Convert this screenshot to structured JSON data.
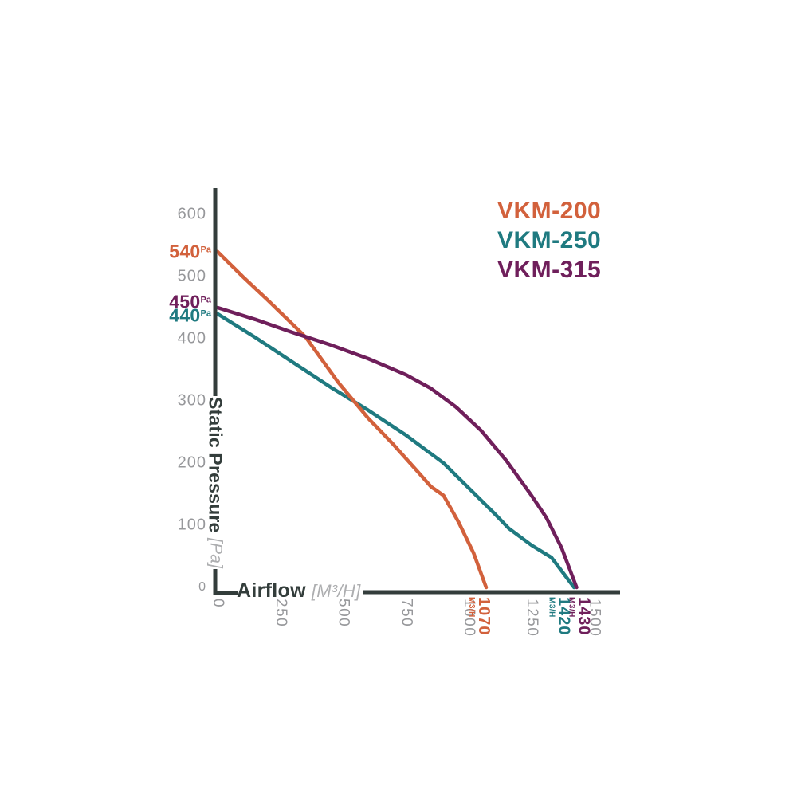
{
  "page": {
    "background": "#ffffff"
  },
  "chart_data": {
    "type": "line",
    "title": "",
    "xlabel": "Airflow",
    "xlabel_unit": "[M³/H]",
    "ylabel": "Static Pressure",
    "ylabel_unit": "[Pa]",
    "x_ticks": [
      0,
      250,
      500,
      750,
      1000,
      1250,
      1500
    ],
    "y_ticks": [
      600,
      500,
      400,
      300,
      200,
      100,
      0
    ],
    "xlim": [
      0,
      1550
    ],
    "ylim": [
      0,
      640
    ],
    "grid": false,
    "legend_position": "top-right",
    "axis_color": "#333d3b",
    "tick_color": "#97989b",
    "unit_color": "#adaeb0",
    "pressure_unit": "Pa",
    "flow_unit": "M3/H",
    "series": [
      {
        "name": "VKM-200",
        "color": "#d2613c",
        "max_static_pressure": 540,
        "max_airflow": 1070,
        "points": [
          [
            0,
            540
          ],
          [
            100,
            500
          ],
          [
            200,
            462
          ],
          [
            350,
            403
          ],
          [
            480,
            330
          ],
          [
            600,
            272
          ],
          [
            700,
            230
          ],
          [
            800,
            185
          ],
          [
            850,
            162
          ],
          [
            900,
            148
          ],
          [
            960,
            105
          ],
          [
            1020,
            55
          ],
          [
            1070,
            0
          ]
        ]
      },
      {
        "name": "VKM-250",
        "color": "#1f7a80",
        "max_static_pressure": 440,
        "max_airflow": 1420,
        "points": [
          [
            0,
            440
          ],
          [
            150,
            402
          ],
          [
            300,
            362
          ],
          [
            450,
            322
          ],
          [
            600,
            285
          ],
          [
            750,
            245
          ],
          [
            900,
            200
          ],
          [
            1000,
            160
          ],
          [
            1100,
            120
          ],
          [
            1160,
            95
          ],
          [
            1250,
            68
          ],
          [
            1330,
            48
          ],
          [
            1420,
            0
          ]
        ]
      },
      {
        "name": "VKM-315",
        "color": "#6f1f5b",
        "max_static_pressure": 450,
        "max_airflow": 1430,
        "points": [
          [
            0,
            450
          ],
          [
            150,
            431
          ],
          [
            300,
            410
          ],
          [
            450,
            390
          ],
          [
            600,
            368
          ],
          [
            750,
            342
          ],
          [
            850,
            320
          ],
          [
            950,
            290
          ],
          [
            1050,
            252
          ],
          [
            1150,
            204
          ],
          [
            1250,
            148
          ],
          [
            1310,
            112
          ],
          [
            1370,
            64
          ],
          [
            1430,
            0
          ]
        ]
      }
    ]
  }
}
